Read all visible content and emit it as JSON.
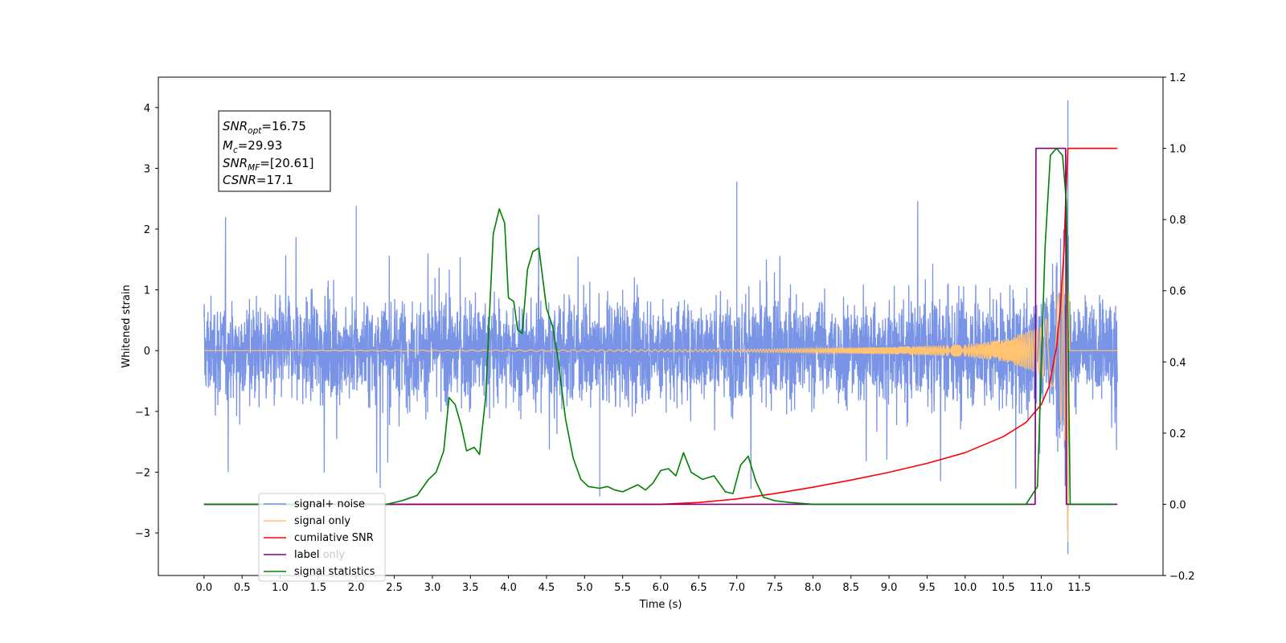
{
  "chart_data": {
    "type": "line",
    "xlabel": "Time (s)",
    "ylabel": "Whitened strain",
    "xlim": [
      -0.6,
      12.6
    ],
    "ylim": [
      -3.7,
      4.5
    ],
    "y2lim": [
      -0.2,
      1.2
    ],
    "x_ticks": [
      "0.0",
      "0.5",
      "1.0",
      "1.5",
      "2.0",
      "2.5",
      "3.0",
      "3.5",
      "4.0",
      "4.5",
      "5.0",
      "5.5",
      "6.0",
      "6.5",
      "7.0",
      "7.5",
      "8.0",
      "8.5",
      "9.0",
      "9.5",
      "10.0",
      "10.5",
      "11.0",
      "11.5"
    ],
    "y_ticks": [
      "−3",
      "−2",
      "−1",
      "0",
      "1",
      "2",
      "3",
      "4"
    ],
    "y2_ticks": [
      "−0.2",
      "0.0",
      "0.2",
      "0.4",
      "0.6",
      "0.8",
      "1.0",
      "1.2"
    ],
    "grid": false,
    "legend_position": "lower-left",
    "annotation": {
      "snr_opt": {
        "base": "SNR",
        "sub": "opt",
        "value": "=16.75"
      },
      "mc": {
        "base": "M",
        "sub": "c",
        "value": "=29.93"
      },
      "snr_mf": {
        "base": "SNR",
        "sub": "MF",
        "value": "=[20.61]"
      },
      "csnr": {
        "base": "CSNR",
        "value": "=17.1"
      }
    },
    "series": [
      {
        "name": "signal+ noise",
        "color": "#7994e6",
        "axis": "left",
        "x_range": [
          0.0,
          12.0
        ],
        "noise_envelope": [
          -1.4,
          1.4
        ],
        "peaks": [
          [
            2.0,
            2.38
          ],
          [
            7.0,
            2.78
          ],
          [
            11.35,
            4.12
          ],
          [
            11.35,
            -3.35
          ],
          [
            5.2,
            -2.4
          ]
        ]
      },
      {
        "name": "signal only",
        "color": "#ffc371",
        "axis": "left",
        "x_range": [
          0.0,
          12.0
        ],
        "chirp_envelope": [
          [
            0.0,
            0.0
          ],
          [
            7.0,
            0.02
          ],
          [
            9.0,
            0.06
          ],
          [
            10.0,
            0.1
          ],
          [
            10.5,
            0.18
          ],
          [
            11.0,
            0.4
          ],
          [
            11.2,
            0.8
          ],
          [
            11.32,
            1.6
          ],
          [
            11.35,
            3.3
          ],
          [
            11.37,
            0.0
          ],
          [
            12.0,
            0.0
          ]
        ]
      },
      {
        "name": "cumilative SNR",
        "color": "#ff0000",
        "axis": "right",
        "x": [
          0.0,
          6.0,
          6.5,
          7.0,
          7.5,
          8.0,
          8.5,
          9.0,
          9.5,
          10.0,
          10.5,
          10.8,
          11.0,
          11.1,
          11.2,
          11.25,
          11.3,
          11.32,
          11.35,
          11.4,
          12.0
        ],
        "values": [
          0.0,
          0.0,
          0.005,
          0.015,
          0.03,
          0.048,
          0.068,
          0.09,
          0.115,
          0.145,
          0.19,
          0.23,
          0.28,
          0.33,
          0.44,
          0.55,
          0.72,
          0.85,
          1.0,
          1.0,
          1.0
        ]
      },
      {
        "name": "label",
        "color": "#800080",
        "axis": "right",
        "x": [
          0.0,
          10.92,
          10.93,
          11.32,
          11.33,
          12.0
        ],
        "values": [
          0.0,
          0.0,
          1.0,
          1.0,
          0.0,
          0.0
        ]
      },
      {
        "name": "label only",
        "color": "#800080",
        "axis": "right",
        "hidden": true
      },
      {
        "name": "signal statistics",
        "color": "#008000",
        "axis": "right",
        "x": [
          0.0,
          2.4,
          2.6,
          2.8,
          2.95,
          3.05,
          3.15,
          3.22,
          3.3,
          3.38,
          3.45,
          3.55,
          3.62,
          3.7,
          3.8,
          3.88,
          3.95,
          4.0,
          4.07,
          4.12,
          4.18,
          4.25,
          4.32,
          4.4,
          4.5,
          4.58,
          4.65,
          4.75,
          4.85,
          4.95,
          5.05,
          5.2,
          5.3,
          5.4,
          5.5,
          5.6,
          5.7,
          5.8,
          5.9,
          6.0,
          6.1,
          6.2,
          6.3,
          6.4,
          6.55,
          6.7,
          6.85,
          6.95,
          7.05,
          7.15,
          7.25,
          7.35,
          7.5,
          7.7,
          8.0,
          9.0,
          10.8,
          10.95,
          11.05,
          11.12,
          11.2,
          11.28,
          11.33,
          11.38,
          11.5,
          11.95
        ],
        "values": [
          0.0,
          0.0,
          0.01,
          0.025,
          0.07,
          0.09,
          0.15,
          0.3,
          0.28,
          0.22,
          0.15,
          0.16,
          0.14,
          0.3,
          0.76,
          0.83,
          0.79,
          0.58,
          0.57,
          0.49,
          0.48,
          0.66,
          0.71,
          0.72,
          0.55,
          0.5,
          0.41,
          0.24,
          0.13,
          0.07,
          0.05,
          0.045,
          0.05,
          0.04,
          0.035,
          0.045,
          0.055,
          0.04,
          0.06,
          0.095,
          0.1,
          0.08,
          0.145,
          0.09,
          0.07,
          0.08,
          0.035,
          0.03,
          0.11,
          0.135,
          0.065,
          0.02,
          0.01,
          0.005,
          0.0,
          0.0,
          0.0,
          0.05,
          0.72,
          0.98,
          1.0,
          0.98,
          0.85,
          0.0,
          0.0,
          0.0
        ]
      }
    ]
  }
}
